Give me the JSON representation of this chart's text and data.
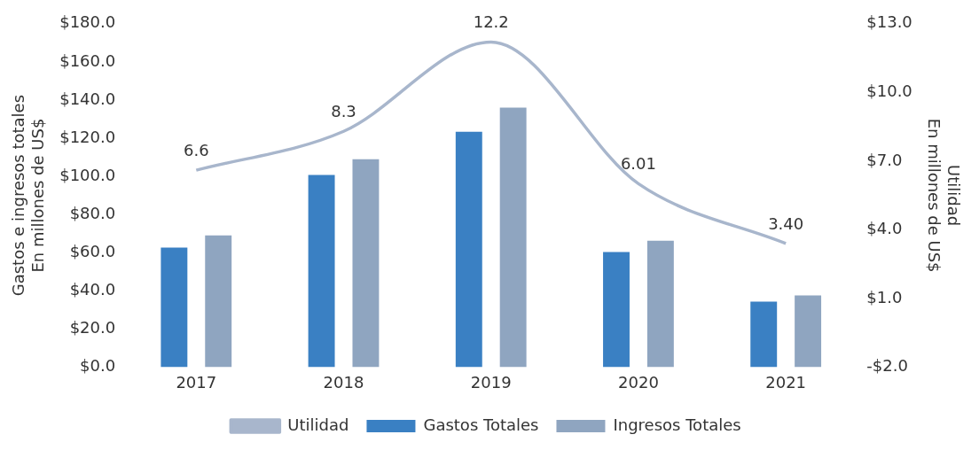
{
  "chart_data": {
    "type": "bar",
    "categories": [
      "2017",
      "2018",
      "2019",
      "2020",
      "2021"
    ],
    "ylabel": "Gastos e ingresos totales\nEn millones de US$",
    "y2label": "Utilidad\nEn millones de US$",
    "series": [
      {
        "name": "Gastos Totales",
        "color": "#3a80c3",
        "values": [
          62.6,
          100.7,
          123.4,
          60.3,
          34.3
        ]
      },
      {
        "name": "Ingresos Totales",
        "color": "#8fa5c0",
        "values": [
          69,
          109,
          136,
          66.3,
          37.6
        ]
      },
      {
        "name": "Utilidad",
        "type": "line",
        "axis": "y2",
        "color": "#a8b6cc",
        "values": [
          6.6,
          8.3,
          12.2,
          6.01,
          3.4
        ],
        "value_labels": [
          "6.6",
          "8.3",
          "12.2",
          "6.01",
          "3.40"
        ]
      }
    ],
    "ylim": [
      0,
      180
    ],
    "yticks": [
      {
        "value": 0,
        "label": "$0.0"
      },
      {
        "value": 20,
        "label": "$20.0"
      },
      {
        "value": 40,
        "label": "$40.0"
      },
      {
        "value": 60,
        "label": "$60.0"
      },
      {
        "value": 80,
        "label": "$80.0"
      },
      {
        "value": 100,
        "label": "$100.0"
      },
      {
        "value": 120,
        "label": "$120.0"
      },
      {
        "value": 140,
        "label": "$140.0"
      },
      {
        "value": 160,
        "label": "$160.0"
      },
      {
        "value": 180,
        "label": "$180.0"
      }
    ],
    "y2lim": [
      -2,
      13
    ],
    "y2ticks": [
      {
        "value": -2,
        "label": "-$2.0"
      },
      {
        "value": 1,
        "label": "$1.0"
      },
      {
        "value": 4,
        "label": "$4.0"
      },
      {
        "value": 7,
        "label": "$7.0"
      },
      {
        "value": 10,
        "label": "$10.0"
      },
      {
        "value": 13,
        "label": "$13.0"
      }
    ],
    "grid": false,
    "legend": "bottom",
    "marker": "none",
    "line_style": "solid"
  }
}
